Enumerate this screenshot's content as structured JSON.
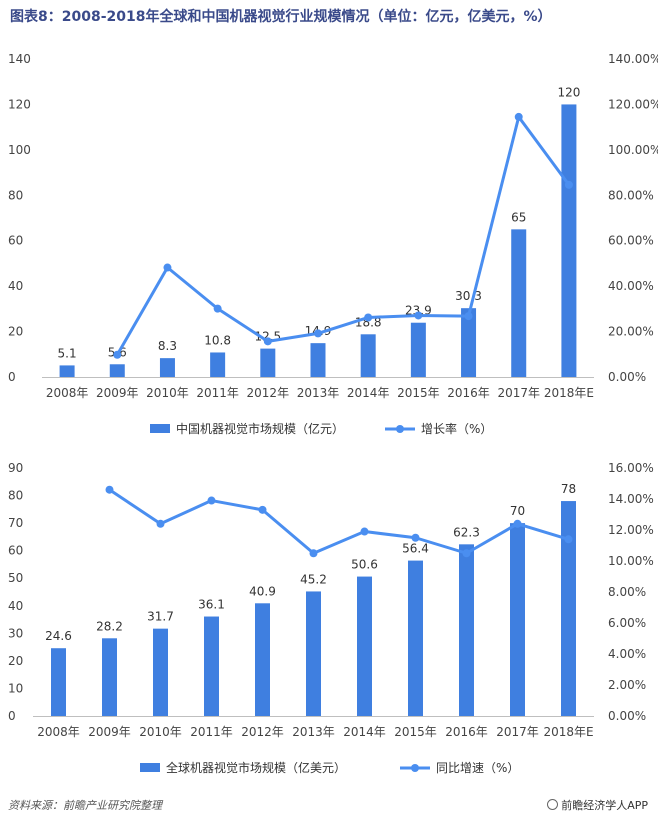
{
  "title": "图表8：2008-2018年全球和中国机器视觉行业规模情况（单位：亿元，亿美元，%）",
  "colors": {
    "bar": "#3f7fe0",
    "line": "#4a8ef0",
    "title": "#3a4a8a"
  },
  "chart_data": [
    {
      "type": "bar",
      "categories": [
        "2008年",
        "2009年",
        "2010年",
        "2011年",
        "2012年",
        "2013年",
        "2014年",
        "2015年",
        "2016年",
        "2017年",
        "2018年E"
      ],
      "series": [
        {
          "name": "中国机器视觉市场规模（亿元）",
          "type": "bar",
          "axis": "left",
          "values": [
            5.1,
            5.6,
            8.3,
            10.8,
            12.5,
            14.9,
            18.8,
            23.9,
            30.3,
            65,
            120
          ],
          "labels": [
            "5.1",
            "5.6",
            "8.3",
            "10.8",
            "12.5",
            "14.9",
            "18.8",
            "23.9",
            "30.3",
            "65",
            "120"
          ]
        },
        {
          "name": "增长率（%）",
          "type": "line",
          "axis": "right",
          "values": [
            null,
            9.8,
            48.2,
            30.1,
            15.7,
            19.2,
            26.2,
            27.1,
            26.8,
            114.5,
            84.6
          ]
        }
      ],
      "yleft": {
        "min": 0,
        "max": 140,
        "step": 20,
        "ticks": [
          "0",
          "20",
          "40",
          "60",
          "80",
          "100",
          "120",
          "140"
        ]
      },
      "yright": {
        "min": 0,
        "max": 140,
        "step": 20,
        "ticks": [
          "0.00%",
          "20.00%",
          "40.00%",
          "60.00%",
          "80.00%",
          "100.00%",
          "120.00%",
          "140.00%"
        ]
      },
      "grid": false,
      "legend": "bottom"
    },
    {
      "type": "bar",
      "categories": [
        "2008年",
        "2009年",
        "2010年",
        "2011年",
        "2012年",
        "2013年",
        "2014年",
        "2015年",
        "2016年",
        "2017年",
        "2018年E"
      ],
      "series": [
        {
          "name": "全球机器视觉市场规模（亿美元）",
          "type": "bar",
          "axis": "left",
          "values": [
            24.6,
            28.2,
            31.7,
            36.1,
            40.9,
            45.2,
            50.6,
            56.4,
            62.3,
            70,
            78
          ],
          "labels": [
            "24.6",
            "28.2",
            "31.7",
            "36.1",
            "40.9",
            "45.2",
            "50.6",
            "56.4",
            "62.3",
            "70",
            "78"
          ]
        },
        {
          "name": "同比增速（%）",
          "type": "line",
          "axis": "right",
          "values": [
            null,
            14.6,
            12.4,
            13.9,
            13.3,
            10.5,
            11.9,
            11.5,
            10.5,
            12.4,
            11.4
          ]
        }
      ],
      "yleft": {
        "min": 0,
        "max": 90,
        "step": 10,
        "ticks": [
          "0",
          "10",
          "20",
          "30",
          "40",
          "50",
          "60",
          "70",
          "80",
          "90"
        ]
      },
      "yright": {
        "min": 0,
        "max": 16,
        "step": 2,
        "ticks": [
          "0.00%",
          "2.00%",
          "4.00%",
          "6.00%",
          "8.00%",
          "10.00%",
          "12.00%",
          "14.00%",
          "16.00%"
        ]
      },
      "grid": false,
      "legend": "bottom"
    }
  ],
  "footer": {
    "source": "资料来源：前瞻产业研究院整理",
    "brand": "前瞻经济学人APP",
    "brand_icon": "qianzhan-logo-icon"
  }
}
